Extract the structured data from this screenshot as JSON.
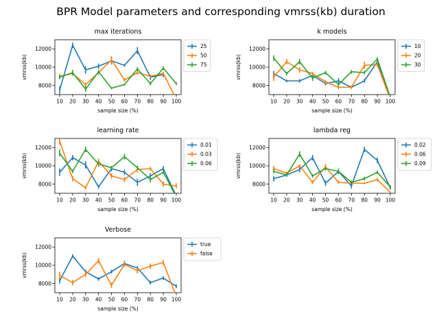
{
  "figure_title": "BPR Model parameters and corresponding vmrss(kb) duration",
  "chart_data": [
    {
      "type": "line",
      "title": "max iterations",
      "xlabel": "sample size (%)",
      "ylabel": "vmrss(kb)",
      "categories": [
        "10",
        "20",
        "30",
        "40",
        "50",
        "60",
        "70",
        "80",
        "90",
        "100"
      ],
      "yticks": [
        8000,
        10000,
        12000
      ],
      "ylim": [
        7000,
        13000
      ],
      "series": [
        {
          "name": "25",
          "color": "#1f77b4",
          "values": [
            7500,
            12400,
            9700,
            10100,
            10700,
            10200,
            11800,
            8900,
            9200,
            null
          ],
          "err": [
            400,
            300,
            400,
            300,
            400,
            150,
            400,
            300,
            300,
            0
          ]
        },
        {
          "name": "50",
          "color": "#ff7f0e",
          "values": [
            9000,
            9300,
            8100,
            9400,
            10800,
            8600,
            9400,
            9000,
            9300,
            6500
          ],
          "err": [
            300,
            200,
            200,
            200,
            400,
            200,
            200,
            200,
            200,
            0
          ]
        },
        {
          "name": "75",
          "color": "#2ca02c",
          "values": [
            8900,
            9400,
            7600,
            9500,
            7700,
            8100,
            9800,
            8200,
            9900,
            8200
          ],
          "err": [
            200,
            300,
            300,
            200,
            100,
            100,
            200,
            200,
            200,
            150
          ]
        }
      ],
      "legend_position": "outside-right"
    },
    {
      "type": "line",
      "title": "k models",
      "xlabel": "sample size (%)",
      "ylabel": "vmrss(kb)",
      "categories": [
        "10",
        "20",
        "30",
        "40",
        "50",
        "60",
        "70",
        "80",
        "90",
        "100"
      ],
      "yticks": [
        8000,
        10000,
        12000
      ],
      "ylim": [
        7000,
        13000
      ],
      "series": [
        {
          "name": "10",
          "color": "#1f77b4",
          "values": [
            9300,
            8500,
            8500,
            9100,
            8200,
            8500,
            7800,
            8500,
            10600,
            6700
          ],
          "err": [
            300,
            150,
            200,
            200,
            200,
            300,
            200,
            200,
            300,
            0
          ]
        },
        {
          "name": "20",
          "color": "#ff7f0e",
          "values": [
            8900,
            10600,
            9700,
            9300,
            8400,
            7800,
            7800,
            10200,
            10300,
            6500
          ],
          "err": [
            400,
            300,
            300,
            200,
            200,
            200,
            200,
            400,
            300,
            0
          ]
        },
        {
          "name": "30",
          "color": "#2ca02c",
          "values": [
            11000,
            9300,
            10600,
            8800,
            9400,
            8100,
            9500,
            9400,
            10900,
            6700
          ],
          "err": [
            300,
            200,
            300,
            300,
            200,
            200,
            200,
            200,
            200,
            0
          ]
        }
      ],
      "legend_position": "outside-right"
    },
    {
      "type": "line",
      "title": "learning rate",
      "xlabel": "sample size (%)",
      "ylabel": "vmrss(kb)",
      "categories": [
        "10",
        "20",
        "30",
        "40",
        "50",
        "60",
        "70",
        "80",
        "90",
        "100"
      ],
      "yticks": [
        8000,
        10000,
        12000
      ],
      "ylim": [
        7000,
        13000
      ],
      "series": [
        {
          "name": "0.01",
          "color": "#1f77b4",
          "values": [
            9300,
            10900,
            10100,
            7700,
            9700,
            9300,
            8200,
            8900,
            9700,
            6700
          ],
          "err": [
            400,
            300,
            400,
            200,
            300,
            300,
            400,
            300,
            300,
            0
          ]
        },
        {
          "name": "0.03",
          "color": "#ff7f0e",
          "values": [
            12700,
            8600,
            7600,
            10500,
            8900,
            8500,
            9600,
            9700,
            8000,
            7800
          ],
          "err": [
            400,
            300,
            200,
            300,
            300,
            300,
            300,
            200,
            300,
            300
          ]
        },
        {
          "name": "0.06",
          "color": "#2ca02c",
          "values": [
            11400,
            9400,
            11800,
            10200,
            9800,
            11000,
            9800,
            8500,
            9300,
            6600
          ],
          "err": [
            400,
            200,
            300,
            300,
            200,
            300,
            200,
            300,
            200,
            0
          ]
        }
      ],
      "legend_position": "outside-right"
    },
    {
      "type": "line",
      "title": "lambda reg",
      "xlabel": "sample size (%)",
      "ylabel": "vmrss(kb)",
      "categories": [
        "10",
        "20",
        "30",
        "40",
        "50",
        "60",
        "70",
        "80",
        "90",
        "100"
      ],
      "yticks": [
        8000,
        10000,
        12000
      ],
      "ylim": [
        7000,
        13000
      ],
      "series": [
        {
          "name": "0.02",
          "color": "#1f77b4",
          "values": [
            8600,
            9000,
            9600,
            10900,
            8100,
            9400,
            7800,
            11800,
            10600,
            7600
          ],
          "err": [
            300,
            200,
            300,
            300,
            300,
            200,
            300,
            300,
            300,
            200
          ]
        },
        {
          "name": "0.06",
          "color": "#ff7f0e",
          "values": [
            9700,
            9200,
            10000,
            8200,
            9900,
            8200,
            8100,
            8100,
            8500,
            7100
          ],
          "err": [
            300,
            200,
            200,
            200,
            300,
            200,
            100,
            100,
            200,
            0
          ]
        },
        {
          "name": "0.09",
          "color": "#2ca02c",
          "values": [
            9400,
            9000,
            11300,
            8900,
            9700,
            9400,
            8200,
            8600,
            9300,
            7700
          ],
          "err": [
            200,
            200,
            300,
            200,
            200,
            300,
            200,
            200,
            200,
            200
          ]
        }
      ],
      "legend_position": "outside-right"
    },
    {
      "type": "line",
      "title": "Verbose",
      "xlabel": "sample size (%)",
      "ylabel": "vmrss(kb)",
      "categories": [
        "10",
        "20",
        "30",
        "40",
        "50",
        "60",
        "70",
        "80",
        "90",
        "100"
      ],
      "yticks": [
        8000,
        10000,
        12000
      ],
      "ylim": [
        7000,
        13000
      ],
      "series": [
        {
          "name": "true",
          "color": "#1f77b4",
          "values": [
            8300,
            11000,
            9300,
            8500,
            9300,
            10200,
            9700,
            8100,
            8600,
            7700
          ],
          "err": [
            300,
            200,
            200,
            200,
            200,
            300,
            200,
            200,
            200,
            200
          ]
        },
        {
          "name": "false",
          "color": "#ff7f0e",
          "values": [
            8900,
            8100,
            9000,
            10500,
            7800,
            10100,
            9400,
            9900,
            10300,
            6600
          ],
          "err": [
            400,
            300,
            300,
            300,
            300,
            300,
            300,
            300,
            300,
            0
          ]
        }
      ],
      "legend_position": "outside-right"
    }
  ]
}
